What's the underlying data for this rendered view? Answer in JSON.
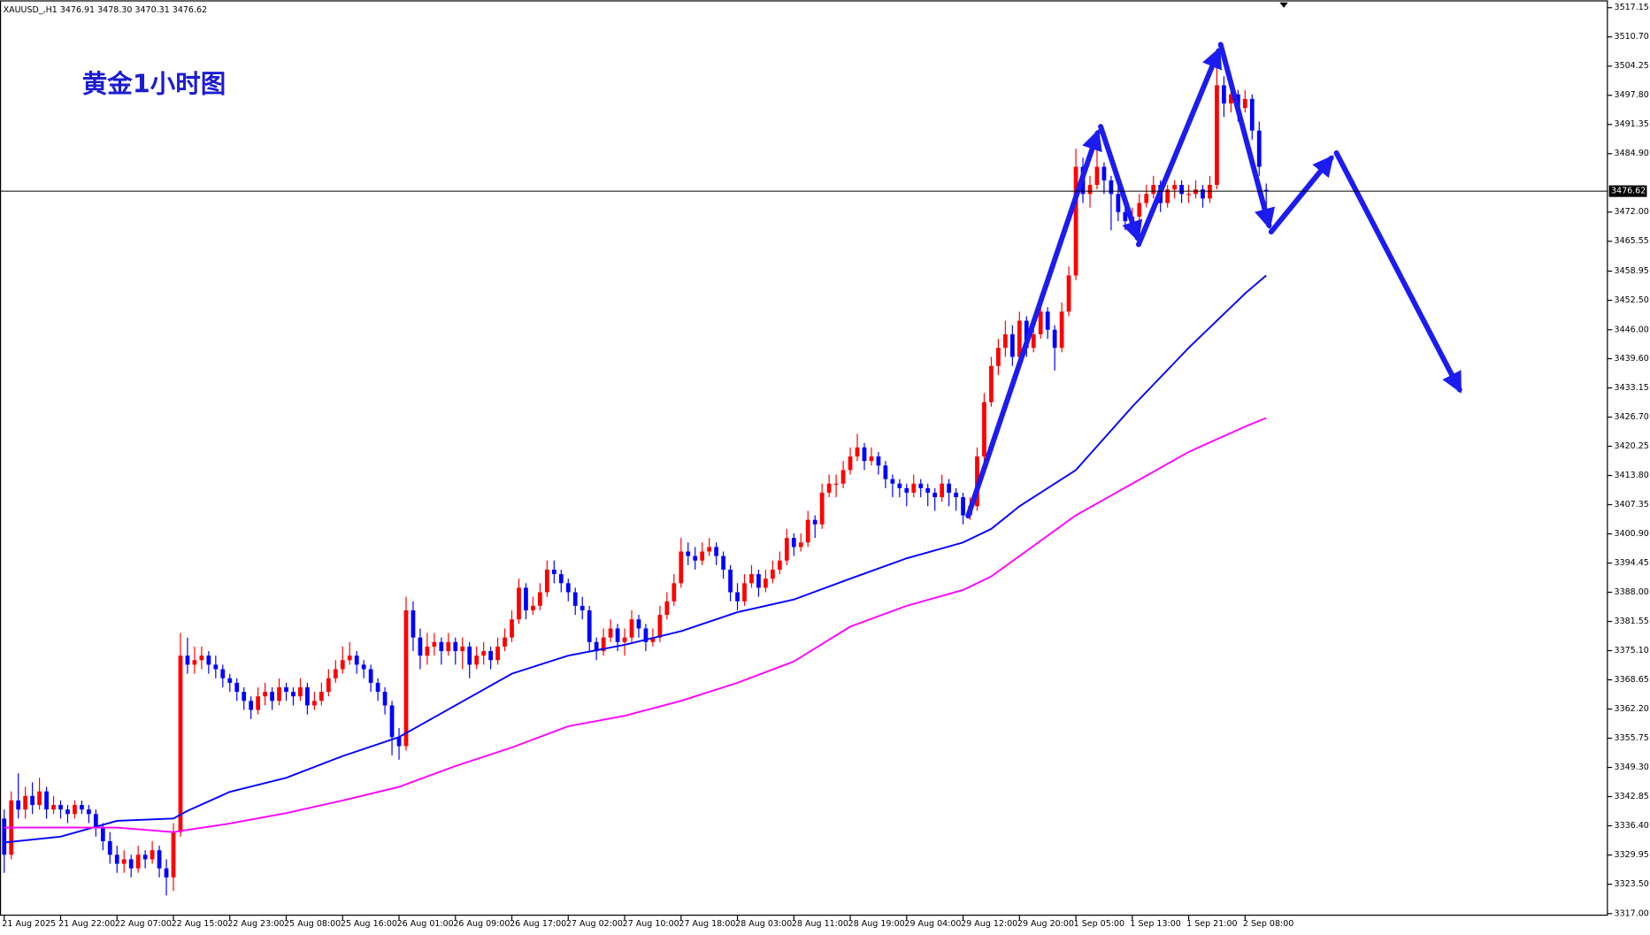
{
  "header": {
    "symbol": "XAUUSD_,H1",
    "last_labels": [
      "3476.91",
      "3478.30",
      "3470.31",
      "3476.62"
    ]
  },
  "chart_data": {
    "type": "candlestick",
    "title": "黄金1小时图",
    "up_color": "#ff0000",
    "down_color": "#0000ff",
    "ylim": [
      3317.0,
      3517.15
    ],
    "yticks": [
      {
        "value": 3517.15,
        "label": "3517.15"
      },
      {
        "value": 3510.7,
        "label": "3510.70"
      },
      {
        "value": 3504.25,
        "label": "3504.25"
      },
      {
        "value": 3497.8,
        "label": "3497.80"
      },
      {
        "value": 3491.35,
        "label": "3491.35"
      },
      {
        "value": 3484.9,
        "label": "3484.90"
      },
      {
        "value": 3472.0,
        "label": "3472.00"
      },
      {
        "value": 3465.55,
        "label": "3465.55"
      },
      {
        "value": 3458.95,
        "label": "3458.95"
      },
      {
        "value": 3452.5,
        "label": "3452.50"
      },
      {
        "value": 3446.0,
        "label": "3446.00"
      },
      {
        "value": 3439.6,
        "label": "3439.60"
      },
      {
        "value": 3433.15,
        "label": "3433.15"
      },
      {
        "value": 3426.7,
        "label": "3426.70"
      },
      {
        "value": 3420.25,
        "label": "3420.25"
      },
      {
        "value": 3413.8,
        "label": "3413.80"
      },
      {
        "value": 3407.35,
        "label": "3407.35"
      },
      {
        "value": 3400.9,
        "label": "3400.90"
      },
      {
        "value": 3394.45,
        "label": "3394.45"
      },
      {
        "value": 3388.0,
        "label": "3388.00"
      },
      {
        "value": 3381.55,
        "label": "3381.55"
      },
      {
        "value": 3375.1,
        "label": "3375.10"
      },
      {
        "value": 3368.65,
        "label": "3368.65"
      },
      {
        "value": 3362.2,
        "label": "3362.20"
      },
      {
        "value": 3355.75,
        "label": "3355.75"
      },
      {
        "value": 3349.3,
        "label": "3349.30"
      },
      {
        "value": 3342.85,
        "label": "3342.85"
      },
      {
        "value": 3336.4,
        "label": "3336.40"
      },
      {
        "value": 3329.95,
        "label": "3329.95"
      },
      {
        "value": 3323.5,
        "label": "3323.50"
      },
      {
        "value": 3317.0,
        "label": "3317.00"
      }
    ],
    "categories": [
      "21 Aug 2025",
      null,
      null,
      null,
      null,
      null,
      null,
      null,
      "21 Aug 22:00",
      null,
      null,
      null,
      null,
      null,
      null,
      null,
      "22 Aug 07:00",
      null,
      null,
      null,
      null,
      null,
      null,
      null,
      "22 Aug 15:00",
      null,
      null,
      null,
      null,
      null,
      null,
      null,
      "22 Aug 23:00",
      null,
      null,
      null,
      null,
      null,
      null,
      null,
      "25 Aug 08:00",
      null,
      null,
      null,
      null,
      null,
      null,
      null,
      "25 Aug 16:00",
      null,
      null,
      null,
      null,
      null,
      null,
      null,
      "26 Aug 01:00",
      null,
      null,
      null,
      null,
      null,
      null,
      null,
      "26 Aug 09:00",
      null,
      null,
      null,
      null,
      null,
      null,
      null,
      "26 Aug 17:00",
      null,
      null,
      null,
      null,
      null,
      null,
      null,
      "27 Aug 02:00",
      null,
      null,
      null,
      null,
      null,
      null,
      null,
      "27 Aug 10:00",
      null,
      null,
      null,
      null,
      null,
      null,
      null,
      "27 Aug 18:00",
      null,
      null,
      null,
      null,
      null,
      null,
      null,
      "28 Aug 03:00",
      null,
      null,
      null,
      null,
      null,
      null,
      null,
      "28 Aug 11:00",
      null,
      null,
      null,
      null,
      null,
      null,
      null,
      "28 Aug 19:00",
      null,
      null,
      null,
      null,
      null,
      null,
      null,
      "29 Aug 04:00",
      null,
      null,
      null,
      null,
      null,
      null,
      null,
      "29 Aug 12:00",
      null,
      null,
      null,
      null,
      null,
      null,
      null,
      "29 Aug 20:00",
      null,
      null,
      null,
      null,
      null,
      null,
      null,
      "1 Sep 05:00",
      null,
      null,
      null,
      null,
      null,
      null,
      null,
      "1 Sep 13:00",
      null,
      null,
      null,
      null,
      null,
      null,
      null,
      "1 Sep 21:00",
      null,
      null,
      null,
      null,
      null,
      null,
      null,
      "2 Sep 08:00",
      null,
      null,
      null
    ],
    "ohlc": [
      [
        3338,
        3340,
        3326,
        3330
      ],
      [
        3330,
        3344,
        3329,
        3342
      ],
      [
        3342,
        3348,
        3338,
        3340
      ],
      [
        3340,
        3345,
        3338,
        3343
      ],
      [
        3343,
        3346,
        3339,
        3341
      ],
      [
        3341,
        3347,
        3340,
        3344
      ],
      [
        3344,
        3345,
        3338,
        3340
      ],
      [
        3340,
        3343,
        3339,
        3341
      ],
      [
        3341,
        3342,
        3338,
        3340
      ],
      [
        3340,
        3341,
        3337,
        3339
      ],
      [
        3339,
        3342,
        3338,
        3341
      ],
      [
        3341,
        3342,
        3339,
        3340
      ],
      [
        3340,
        3341,
        3337,
        3339
      ],
      [
        3339,
        3340,
        3334,
        3336
      ],
      [
        3336,
        3337,
        3331,
        3333
      ],
      [
        3333,
        3335,
        3328,
        3330
      ],
      [
        3330,
        3332,
        3326,
        3328
      ],
      [
        3328,
        3331,
        3326,
        3329
      ],
      [
        3329,
        3330,
        3325,
        3327
      ],
      [
        3327,
        3332,
        3326,
        3330
      ],
      [
        3330,
        3331,
        3327,
        3329
      ],
      [
        3329,
        3333,
        3328,
        3331
      ],
      [
        3331,
        3332,
        3325,
        3327
      ],
      [
        3327,
        3329,
        3321,
        3325
      ],
      [
        3325,
        3337,
        3322,
        3335
      ],
      [
        3335,
        3379,
        3334,
        3374
      ],
      [
        3374,
        3378,
        3370,
        3372
      ],
      [
        3372,
        3376,
        3370,
        3373
      ],
      [
        3373,
        3376,
        3371,
        3374
      ],
      [
        3374,
        3375,
        3370,
        3372
      ],
      [
        3372,
        3374,
        3369,
        3371
      ],
      [
        3371,
        3372,
        3367,
        3369
      ],
      [
        3369,
        3370,
        3366,
        3368
      ],
      [
        3368,
        3369,
        3364,
        3366
      ],
      [
        3366,
        3367,
        3362,
        3364
      ],
      [
        3364,
        3365,
        3360,
        3362
      ],
      [
        3362,
        3367,
        3361,
        3365
      ],
      [
        3365,
        3368,
        3363,
        3366
      ],
      [
        3366,
        3367,
        3362,
        3364
      ],
      [
        3364,
        3369,
        3363,
        3367
      ],
      [
        3367,
        3368,
        3364,
        3366
      ],
      [
        3366,
        3367,
        3363,
        3365
      ],
      [
        3365,
        3369,
        3364,
        3367
      ],
      [
        3367,
        3368,
        3361,
        3363
      ],
      [
        3363,
        3366,
        3362,
        3364
      ],
      [
        3364,
        3368,
        3363,
        3366
      ],
      [
        3366,
        3371,
        3365,
        3369
      ],
      [
        3369,
        3373,
        3368,
        3371
      ],
      [
        3371,
        3376,
        3370,
        3373
      ],
      [
        3373,
        3377,
        3372,
        3374
      ],
      [
        3374,
        3375,
        3370,
        3372
      ],
      [
        3372,
        3373,
        3369,
        3371
      ],
      [
        3371,
        3372,
        3366,
        3368
      ],
      [
        3368,
        3369,
        3364,
        3366
      ],
      [
        3366,
        3367,
        3361,
        3363
      ],
      [
        3363,
        3364,
        3352,
        3356
      ],
      [
        3356,
        3358,
        3351,
        3354
      ],
      [
        3354,
        3387,
        3353,
        3384
      ],
      [
        3384,
        3386,
        3375,
        3378
      ],
      [
        3378,
        3380,
        3371,
        3374
      ],
      [
        3374,
        3379,
        3372,
        3376
      ],
      [
        3376,
        3379,
        3374,
        3377
      ],
      [
        3377,
        3378,
        3372,
        3375
      ],
      [
        3375,
        3379,
        3374,
        3377
      ],
      [
        3377,
        3378,
        3372,
        3375
      ],
      [
        3375,
        3378,
        3371,
        3376
      ],
      [
        3376,
        3377,
        3369,
        3372
      ],
      [
        3372,
        3376,
        3371,
        3374
      ],
      [
        3374,
        3377,
        3372,
        3375
      ],
      [
        3375,
        3376,
        3371,
        3373
      ],
      [
        3373,
        3378,
        3372,
        3376
      ],
      [
        3376,
        3380,
        3375,
        3378
      ],
      [
        3378,
        3384,
        3377,
        3382
      ],
      [
        3382,
        3391,
        3381,
        3389
      ],
      [
        3389,
        3390,
        3382,
        3384
      ],
      [
        3384,
        3387,
        3383,
        3385
      ],
      [
        3385,
        3390,
        3384,
        3388
      ],
      [
        3388,
        3395,
        3387,
        3393
      ],
      [
        3393,
        3395,
        3390,
        3392
      ],
      [
        3392,
        3393,
        3388,
        3390
      ],
      [
        3390,
        3391,
        3386,
        3388
      ],
      [
        3388,
        3389,
        3383,
        3385
      ],
      [
        3385,
        3387,
        3382,
        3384
      ],
      [
        3384,
        3385,
        3375,
        3377
      ],
      [
        3377,
        3378,
        3373,
        3375
      ],
      [
        3375,
        3380,
        3374,
        3378
      ],
      [
        3378,
        3382,
        3377,
        3380
      ],
      [
        3380,
        3381,
        3375,
        3377
      ],
      [
        3377,
        3380,
        3374,
        3378
      ],
      [
        3378,
        3384,
        3377,
        3382
      ],
      [
        3382,
        3383,
        3378,
        3380
      ],
      [
        3380,
        3381,
        3375,
        3377
      ],
      [
        3377,
        3380,
        3376,
        3378
      ],
      [
        3378,
        3385,
        3377,
        3383
      ],
      [
        3383,
        3388,
        3382,
        3386
      ],
      [
        3386,
        3392,
        3385,
        3390
      ],
      [
        3390,
        3400,
        3389,
        3397
      ],
      [
        3397,
        3399,
        3394,
        3396
      ],
      [
        3396,
        3398,
        3393,
        3395
      ],
      [
        3395,
        3399,
        3394,
        3397
      ],
      [
        3397,
        3400,
        3396,
        3398
      ],
      [
        3398,
        3399,
        3394,
        3396
      ],
      [
        3396,
        3397,
        3391,
        3393
      ],
      [
        3393,
        3394,
        3386,
        3388
      ],
      [
        3388,
        3390,
        3384,
        3386
      ],
      [
        3386,
        3392,
        3385,
        3390
      ],
      [
        3390,
        3394,
        3389,
        3392
      ],
      [
        3392,
        3393,
        3387,
        3389
      ],
      [
        3389,
        3393,
        3388,
        3391
      ],
      [
        3391,
        3395,
        3390,
        3393
      ],
      [
        3393,
        3397,
        3392,
        3395
      ],
      [
        3395,
        3402,
        3394,
        3400
      ],
      [
        3400,
        3401,
        3396,
        3398
      ],
      [
        3398,
        3401,
        3397,
        3399
      ],
      [
        3399,
        3406,
        3398,
        3404
      ],
      [
        3404,
        3405,
        3400,
        3403
      ],
      [
        3403,
        3412,
        3402,
        3410
      ],
      [
        3410,
        3414,
        3409,
        3412
      ],
      [
        3412,
        3414,
        3409,
        3412
      ],
      [
        3412,
        3417,
        3411,
        3415
      ],
      [
        3415,
        3420,
        3414,
        3418
      ],
      [
        3418,
        3423,
        3417,
        3420
      ],
      [
        3420,
        3421,
        3415,
        3417
      ],
      [
        3417,
        3420,
        3416,
        3418
      ],
      [
        3418,
        3419,
        3414,
        3416
      ],
      [
        3416,
        3417,
        3411,
        3413
      ],
      [
        3413,
        3414,
        3409,
        3412
      ],
      [
        3412,
        3413,
        3409,
        3411
      ],
      [
        3411,
        3412,
        3407,
        3410
      ],
      [
        3410,
        3414,
        3409,
        3412
      ],
      [
        3412,
        3413,
        3409,
        3411
      ],
      [
        3411,
        3412,
        3407,
        3410
      ],
      [
        3410,
        3411,
        3406,
        3409
      ],
      [
        3409,
        3414,
        3408,
        3412
      ],
      [
        3412,
        3413,
        3407,
        3410
      ],
      [
        3410,
        3411,
        3406,
        3409
      ],
      [
        3409,
        3410,
        3403,
        3405
      ],
      [
        3405,
        3409,
        3404,
        3407
      ],
      [
        3407,
        3420,
        3406,
        3418
      ],
      [
        3418,
        3432,
        3417,
        3430
      ],
      [
        3430,
        3440,
        3429,
        3438
      ],
      [
        3438,
        3444,
        3436,
        3442
      ],
      [
        3442,
        3448,
        3440,
        3445
      ],
      [
        3445,
        3447,
        3438,
        3440
      ],
      [
        3440,
        3450,
        3439,
        3448
      ],
      [
        3448,
        3449,
        3440,
        3442
      ],
      [
        3442,
        3447,
        3441,
        3445
      ],
      [
        3445,
        3452,
        3444,
        3450
      ],
      [
        3450,
        3451,
        3444,
        3446
      ],
      [
        3446,
        3447,
        3437,
        3442
      ],
      [
        3442,
        3452,
        3441,
        3450
      ],
      [
        3450,
        3460,
        3449,
        3458
      ],
      [
        3458,
        3486,
        3457,
        3482
      ],
      [
        3482,
        3484,
        3474,
        3476
      ],
      [
        3476,
        3480,
        3473,
        3478
      ],
      [
        3478,
        3486,
        3477,
        3482
      ],
      [
        3482,
        3483,
        3476,
        3479
      ],
      [
        3479,
        3480,
        3468,
        3476
      ],
      [
        3476,
        3478,
        3470,
        3472
      ],
      [
        3472,
        3474,
        3468,
        3470
      ],
      [
        3470,
        3473,
        3469,
        3471
      ],
      [
        3471,
        3476,
        3470,
        3474
      ],
      [
        3474,
        3478,
        3473,
        3476
      ],
      [
        3476,
        3480,
        3475,
        3478
      ],
      [
        3478,
        3479,
        3472,
        3474
      ],
      [
        3474,
        3478,
        3473,
        3477
      ],
      [
        3477,
        3479,
        3475,
        3478
      ],
      [
        3478,
        3479,
        3474,
        3476
      ],
      [
        3476,
        3478,
        3474,
        3476
      ],
      [
        3476,
        3479,
        3475,
        3477
      ],
      [
        3477,
        3478,
        3473,
        3475
      ],
      [
        3475,
        3480,
        3474,
        3478
      ],
      [
        3478,
        3505,
        3477,
        3500
      ],
      [
        3500,
        3502,
        3493,
        3496
      ],
      [
        3496,
        3500,
        3494,
        3498
      ],
      [
        3498,
        3499,
        3492,
        3495
      ],
      [
        3495,
        3499,
        3494,
        3497
      ],
      [
        3497,
        3498,
        3488,
        3490
      ],
      [
        3490,
        3492,
        3480,
        3482
      ],
      [
        3476.91,
        3478.3,
        3470.31,
        3476.62
      ]
    ],
    "series": [
      {
        "color": "#0000ff",
        "x": [
          0,
          8,
          16,
          24,
          26,
          32,
          40,
          48,
          56,
          64,
          72,
          80,
          88,
          96,
          104,
          112,
          120,
          128,
          136,
          140,
          144,
          152,
          160,
          168,
          176,
          179
        ],
        "values": [
          3332.7,
          3334,
          3337.5,
          3338,
          3339.7,
          3343.9,
          3347,
          3351.8,
          3356,
          3363,
          3370,
          3374,
          3376.4,
          3379.4,
          3383.6,
          3386.4,
          3391,
          3395.5,
          3399,
          3402,
          3407,
          3415,
          3429,
          3442,
          3454,
          3458
        ]
      },
      {
        "color": "#ff00ff",
        "x": [
          0,
          8,
          16,
          24,
          26,
          32,
          40,
          48,
          56,
          64,
          72,
          80,
          88,
          96,
          104,
          112,
          120,
          128,
          136,
          140,
          144,
          152,
          160,
          168,
          176,
          179
        ],
        "values": [
          3336,
          3336,
          3336,
          3335,
          3335.5,
          3336.9,
          3339.2,
          3342,
          3345,
          3349.6,
          3353.7,
          3358.4,
          3360.7,
          3364,
          3368,
          3372.7,
          3380.4,
          3385,
          3388.5,
          3391.5,
          3396,
          3405,
          3412,
          3419,
          3424.6,
          3426.5
        ]
      }
    ]
  }
}
